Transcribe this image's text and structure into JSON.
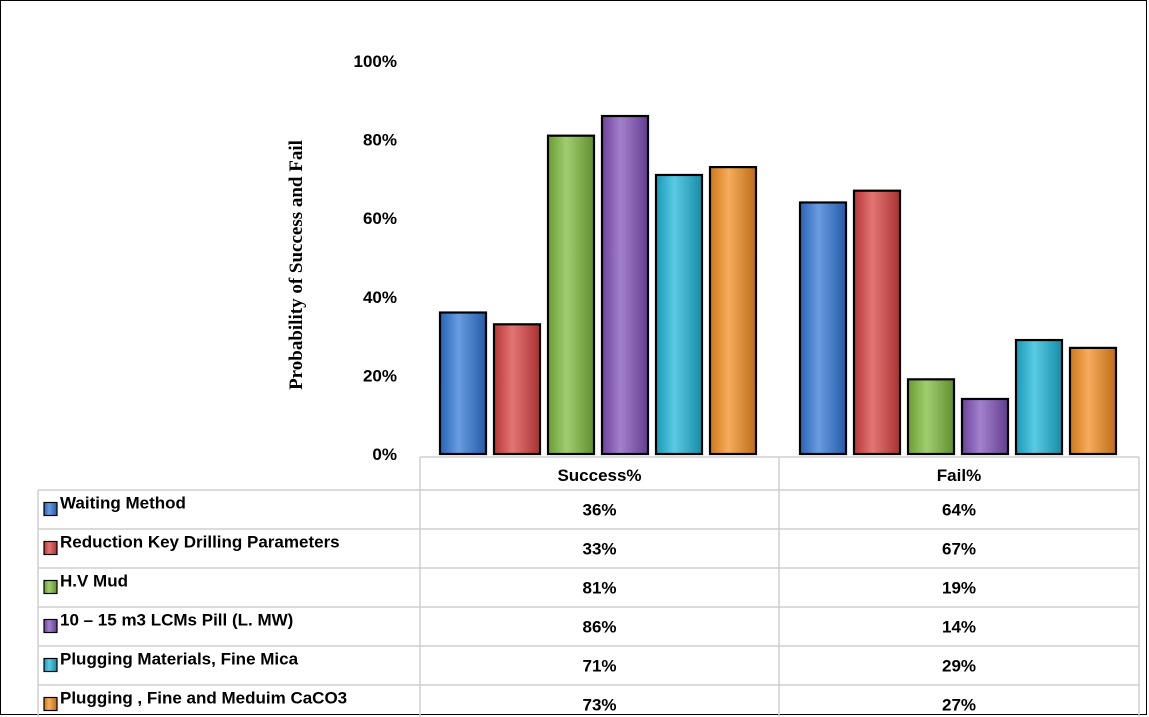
{
  "chart_data": {
    "type": "bar",
    "categories": [
      "Success%",
      "Fail%"
    ],
    "series": [
      {
        "name": "Waiting Method",
        "values": [
          36,
          64
        ],
        "color": "#2E75D6",
        "display": [
          "36%",
          "64%"
        ]
      },
      {
        "name": "Reduction Key Drilling Parameters",
        "values": [
          33,
          67
        ],
        "color": "#D8403F",
        "display": [
          "33%",
          "67%"
        ]
      },
      {
        "name": "H.V Mud",
        "values": [
          81,
          19
        ],
        "color": "#7CB93A",
        "display": [
          "81%",
          "19%"
        ]
      },
      {
        "name": "10 – 15 m3 LCMs Pill (L. MW)",
        "values": [
          86,
          14
        ],
        "color": "#7F4FB8",
        "display": [
          "86%",
          "14%"
        ]
      },
      {
        "name": "Plugging Materials, Fine Mica",
        "values": [
          71,
          29
        ],
        "color": "#1BB5D8",
        "display": [
          "71%",
          "29%"
        ]
      },
      {
        "name": "Plugging , Fine and Meduim CaCO3",
        "values": [
          73,
          27
        ],
        "color": "#F28C1E",
        "display": [
          "73%",
          "27%"
        ]
      }
    ],
    "ylabel": "Probability of  Success and  Fail",
    "ylim": [
      0,
      100
    ],
    "yticks": [
      "0%",
      "20%",
      "40%",
      "60%",
      "80%",
      "100%"
    ],
    "grid": false,
    "legend": "data table below chart"
  }
}
